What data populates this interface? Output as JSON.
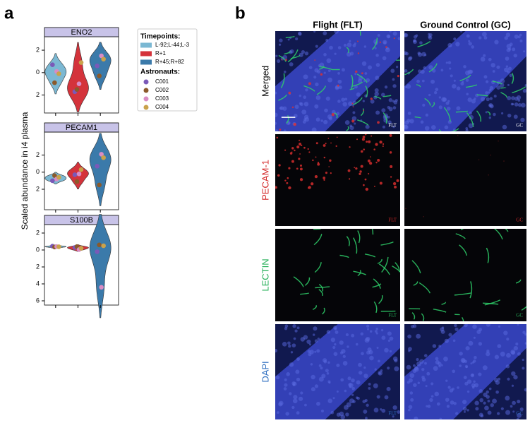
{
  "panel_a": {
    "label": "a",
    "ylabel": "Scaled abundance in i4 plasma"
  },
  "legend": {
    "timepoints_title": "Timepoints:",
    "timepoints": [
      {
        "name": "L-92;L-44;L-3",
        "color": "#7bb8d3"
      },
      {
        "name": "R+1",
        "color": "#d4333b"
      },
      {
        "name": "R+45;R+82",
        "color": "#3b7aaa"
      }
    ],
    "astronauts_title": "Astronauts:"
  },
  "chart_data": [
    {
      "type": "violin",
      "title": "ENO2",
      "categories": [
        null,
        null,
        null
      ],
      "ylim": [
        -3.6,
        3.2
      ],
      "yticks": [
        2,
        0,
        {
          "value": -2,
          "label": "2"
        }
      ],
      "series": [
        {
          "name": "C001",
          "color": "#7a59b8",
          "values": [
            0.7,
            -1.7,
            0.6
          ]
        },
        {
          "name": "C002",
          "color": "#8b5a2b",
          "values": [
            -0.9,
            -1.5,
            -0.3
          ]
        },
        {
          "name": "C003",
          "color": "#d98cc4",
          "values": [
            0.1,
            -1.0,
            1.5
          ]
        },
        {
          "name": "C004",
          "color": "#c9a24b",
          "values": [
            -0.1,
            0.9,
            1.2
          ]
        }
      ]
    },
    {
      "type": "violin",
      "title": "PECAM1",
      "categories": [
        null,
        null,
        null
      ],
      "ylim": [
        -4.4,
        4.7
      ],
      "yticks": [
        {
          "value": -2,
          "label": "2"
        },
        0,
        2
      ],
      "series": [
        {
          "name": "C001",
          "color": "#7a59b8",
          "values": [
            -1.0,
            -0.3,
            0.7
          ]
        },
        {
          "name": "C002",
          "color": "#8b5a2b",
          "values": [
            -0.4,
            -1.1,
            -1.5
          ]
        },
        {
          "name": "C003",
          "color": "#d98cc4",
          "values": [
            -0.8,
            -0.2,
            2.1
          ]
        },
        {
          "name": "C004",
          "color": "#c9a24b",
          "values": [
            -0.6,
            0.3,
            1.7
          ]
        }
      ]
    },
    {
      "type": "violin",
      "title": "S100B",
      "categories": [
        null,
        null,
        null
      ],
      "ylim": [
        -6.5,
        3
      ],
      "yticks": [
        2,
        0,
        {
          "value": -2,
          "label": "2"
        },
        {
          "value": -4,
          "label": "4"
        },
        {
          "value": -6,
          "label": "6"
        }
      ],
      "series": [
        {
          "name": "C001",
          "color": "#7a59b8",
          "values": [
            0.45,
            0.3,
            -0.2
          ]
        },
        {
          "name": "C002",
          "color": "#8b5a2b",
          "values": [
            0.35,
            0.4,
            0.6
          ]
        },
        {
          "name": "C003",
          "color": "#d98cc4",
          "values": [
            0.4,
            0.05,
            -4.4
          ]
        },
        {
          "name": "C004",
          "color": "#c9a24b",
          "values": [
            0.38,
            0.2,
            0.5
          ]
        }
      ]
    }
  ],
  "panel_b": {
    "label": "b",
    "columns": [
      "Flight (FLT)",
      "Ground Control (GC)"
    ],
    "rows": [
      {
        "label": "Merged",
        "color": "#111111"
      },
      {
        "label": "PECAM-1",
        "color": "#d42a2a"
      },
      {
        "label": "LECTIN",
        "color": "#27b05a"
      },
      {
        "label": "DAPI",
        "color": "#2f6fc0"
      }
    ],
    "tags": [
      "FLT",
      "GC"
    ]
  }
}
